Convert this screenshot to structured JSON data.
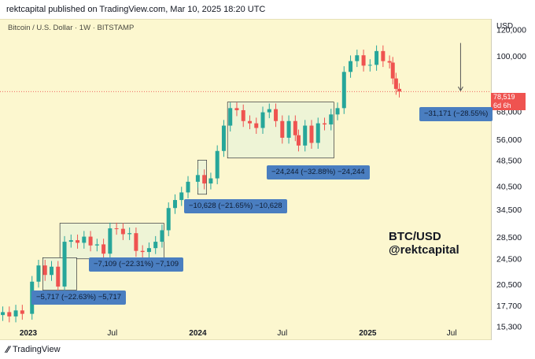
{
  "header": {
    "text": "rektcapital published on TradingView.com, Mar 10, 2025 18:20 UTC"
  },
  "symbol_line": "Bitcoin / U.S. Dollar · 1W · BITSTAMP",
  "currency": "USD",
  "watermark": {
    "line1": "BTC/USD",
    "line2": "@rektcapital"
  },
  "footer": {
    "brand": "TradingView"
  },
  "current_price": {
    "value": "78,519",
    "countdown": "6d 6h"
  },
  "colors": {
    "up": "#26a69a",
    "down": "#ef5350",
    "background": "#fcf7cf",
    "label": "#4a7ec0"
  },
  "chart_data": {
    "type": "candlestick",
    "title": "",
    "y_scale": "log",
    "ylim": [
      14000,
      130000
    ],
    "y_ticks": [
      "120,000",
      "100,000",
      "68,000",
      "56,000",
      "48,500",
      "40,500",
      "34,500",
      "28,500",
      "24,500",
      "20,500",
      "17,700",
      "15,300"
    ],
    "y_tick_values": [
      120000,
      100000,
      68000,
      56000,
      48500,
      40500,
      34500,
      28500,
      24500,
      20500,
      17700,
      15300
    ],
    "x_ticks": [
      "2023",
      "Jul",
      "2024",
      "Jul",
      "2025",
      "Jul"
    ],
    "x_tick_dates": [
      "2023-01-01",
      "2023-07-01",
      "2024-01-01",
      "2024-07-01",
      "2025-01-01",
      "2025-07-01"
    ],
    "xlim": [
      "2022-11-01",
      "2025-09-20"
    ],
    "prices": [
      {
        "date": "2022-11-07",
        "value": 17000
      },
      {
        "date": "2022-11-21",
        "value": 16500
      },
      {
        "date": "2022-12-05",
        "value": 17200
      },
      {
        "date": "2022-12-19",
        "value": 16800
      },
      {
        "date": "2023-01-09",
        "value": 21000
      },
      {
        "date": "2023-01-23",
        "value": 23500
      },
      {
        "date": "2023-02-06",
        "value": 22000
      },
      {
        "date": "2023-02-20",
        "value": 23300
      },
      {
        "date": "2023-03-06",
        "value": 20300
      },
      {
        "date": "2023-03-20",
        "value": 27700
      },
      {
        "date": "2023-04-03",
        "value": 28000
      },
      {
        "date": "2023-04-17",
        "value": 27500
      },
      {
        "date": "2023-05-01",
        "value": 28700
      },
      {
        "date": "2023-05-15",
        "value": 27000
      },
      {
        "date": "2023-05-29",
        "value": 27200
      },
      {
        "date": "2023-06-12",
        "value": 25500
      },
      {
        "date": "2023-06-26",
        "value": 30400
      },
      {
        "date": "2023-07-10",
        "value": 30300
      },
      {
        "date": "2023-07-24",
        "value": 29200
      },
      {
        "date": "2023-08-07",
        "value": 29400
      },
      {
        "date": "2023-08-21",
        "value": 26000
      },
      {
        "date": "2023-09-04",
        "value": 25800
      },
      {
        "date": "2023-09-18",
        "value": 26500
      },
      {
        "date": "2023-10-02",
        "value": 27700
      },
      {
        "date": "2023-10-16",
        "value": 30000
      },
      {
        "date": "2023-10-30",
        "value": 35000
      },
      {
        "date": "2023-11-13",
        "value": 37000
      },
      {
        "date": "2023-11-27",
        "value": 39000
      },
      {
        "date": "2023-12-11",
        "value": 42000
      },
      {
        "date": "2024-01-01",
        "value": 44000
      },
      {
        "date": "2024-01-15",
        "value": 41500
      },
      {
        "date": "2024-01-29",
        "value": 43000
      },
      {
        "date": "2024-02-12",
        "value": 52000
      },
      {
        "date": "2024-02-26",
        "value": 62000
      },
      {
        "date": "2024-03-11",
        "value": 70000
      },
      {
        "date": "2024-03-25",
        "value": 69000
      },
      {
        "date": "2024-04-08",
        "value": 64000
      },
      {
        "date": "2024-04-22",
        "value": 63000
      },
      {
        "date": "2024-05-06",
        "value": 61000
      },
      {
        "date": "2024-05-20",
        "value": 68000
      },
      {
        "date": "2024-06-03",
        "value": 69500
      },
      {
        "date": "2024-06-17",
        "value": 64000
      },
      {
        "date": "2024-07-01",
        "value": 57000
      },
      {
        "date": "2024-07-15",
        "value": 64000
      },
      {
        "date": "2024-07-29",
        "value": 58000
      },
      {
        "date": "2024-08-05",
        "value": 54000
      },
      {
        "date": "2024-08-19",
        "value": 62000
      },
      {
        "date": "2024-09-02",
        "value": 55000
      },
      {
        "date": "2024-09-16",
        "value": 63000
      },
      {
        "date": "2024-09-30",
        "value": 62500
      },
      {
        "date": "2024-10-14",
        "value": 67000
      },
      {
        "date": "2024-10-28",
        "value": 70000
      },
      {
        "date": "2024-11-11",
        "value": 90000
      },
      {
        "date": "2024-11-25",
        "value": 97000
      },
      {
        "date": "2024-12-09",
        "value": 101000
      },
      {
        "date": "2024-12-23",
        "value": 94000
      },
      {
        "date": "2025-01-06",
        "value": 94500
      },
      {
        "date": "2025-01-20",
        "value": 104000
      },
      {
        "date": "2025-02-03",
        "value": 97000
      },
      {
        "date": "2025-02-17",
        "value": 96000
      },
      {
        "date": "2025-02-24",
        "value": 86000
      },
      {
        "date": "2025-03-03",
        "value": 80000
      },
      {
        "date": "2025-03-10",
        "value": 78519
      }
    ],
    "annotations": [
      {
        "text": "−5,717 (−22.63%) −5,717"
      },
      {
        "text": "−7,109 (−22.31%) −7,109"
      },
      {
        "text": "−10,628 (−21.65%) −10,628"
      },
      {
        "text": "−24,244 (−32.88%) −24,244"
      },
      {
        "text": "−31,171 (−28.55%)"
      }
    ]
  }
}
